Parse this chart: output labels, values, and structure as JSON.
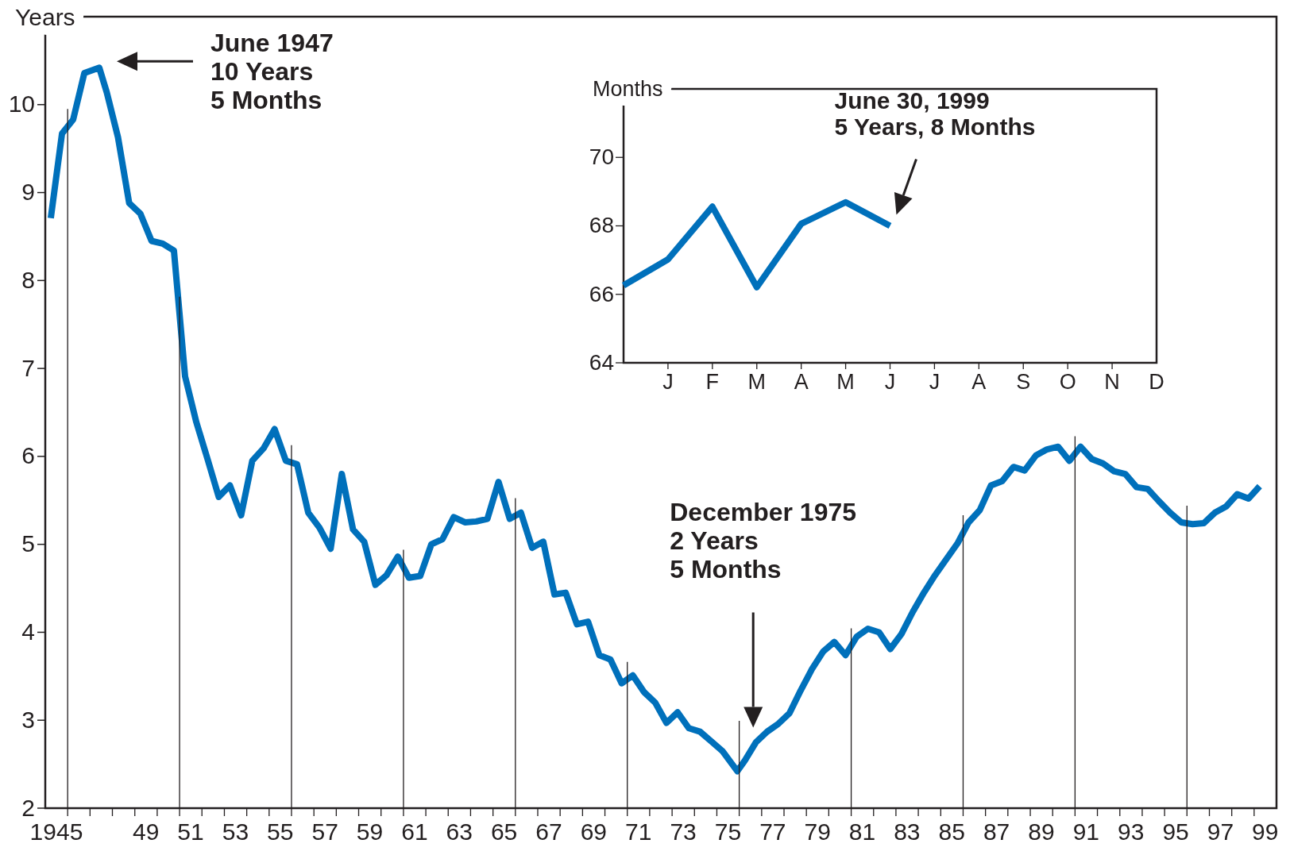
{
  "chart_data": [
    {
      "type": "line",
      "ylabel": "Years",
      "x": [
        "1945-04",
        "1945-10",
        "1946-04",
        "1946-10",
        "1947-06",
        "1947-10",
        "1948-04",
        "1948-10",
        "1949-04",
        "1949-10",
        "1950-04",
        "1950-10",
        "1951-04",
        "1951-10",
        "1952-04",
        "1952-10",
        "1953-04",
        "1953-10",
        "1954-04",
        "1954-10",
        "1955-04",
        "1955-10",
        "1956-04",
        "1956-10",
        "1957-04",
        "1957-10",
        "1958-04",
        "1958-10",
        "1959-04",
        "1959-10",
        "1960-04",
        "1960-10",
        "1961-04",
        "1961-10",
        "1962-04",
        "1962-10",
        "1963-04",
        "1963-10",
        "1964-04",
        "1964-10",
        "1965-04",
        "1965-10",
        "1966-04",
        "1966-10",
        "1967-04",
        "1967-10",
        "1968-04",
        "1968-10",
        "1969-04",
        "1969-10",
        "1970-04",
        "1970-10",
        "1971-04",
        "1971-10",
        "1972-04",
        "1972-10",
        "1973-04",
        "1973-10",
        "1974-04",
        "1974-10",
        "1975-04",
        "1975-12",
        "1976-04",
        "1976-10",
        "1977-04",
        "1977-10",
        "1978-04",
        "1978-10",
        "1979-04",
        "1979-10",
        "1980-04",
        "1980-10",
        "1981-04",
        "1981-10",
        "1982-04",
        "1982-10",
        "1983-04",
        "1983-10",
        "1984-04",
        "1984-10",
        "1985-04",
        "1985-10",
        "1986-04",
        "1986-10",
        "1987-04",
        "1987-10",
        "1988-04",
        "1988-10",
        "1989-04",
        "1989-10",
        "1990-04",
        "1990-10",
        "1991-04",
        "1991-10",
        "1992-04",
        "1992-10",
        "1993-04",
        "1993-10",
        "1994-04",
        "1994-10",
        "1995-04",
        "1995-10",
        "1996-04",
        "1996-10",
        "1997-04",
        "1997-10",
        "1998-04",
        "1998-10",
        "1999-04"
      ],
      "series": [
        {
          "color": "#0070bb",
          "values": [
            8.71,
            9.67,
            9.83,
            10.36,
            10.42,
            10.14,
            9.63,
            8.88,
            8.76,
            8.45,
            8.42,
            8.34,
            6.91,
            6.39,
            5.97,
            5.54,
            5.67,
            5.33,
            5.95,
            6.09,
            6.31,
            5.95,
            5.91,
            5.36,
            5.19,
            4.95,
            5.8,
            5.17,
            5.03,
            4.54,
            4.65,
            4.86,
            4.62,
            4.64,
            5.0,
            5.06,
            5.31,
            5.25,
            5.26,
            5.29,
            5.71,
            5.29,
            5.36,
            4.96,
            5.03,
            4.43,
            4.45,
            4.09,
            4.12,
            3.74,
            3.69,
            3.42,
            3.51,
            3.32,
            3.2,
            2.97,
            3.09,
            2.91,
            2.87,
            2.76,
            2.65,
            2.42,
            2.54,
            2.75,
            2.87,
            2.96,
            3.08,
            3.34,
            3.58,
            3.78,
            3.89,
            3.74,
            3.95,
            4.04,
            4.0,
            3.81,
            3.98,
            4.23,
            4.45,
            4.65,
            4.83,
            5.01,
            5.25,
            5.39,
            5.67,
            5.72,
            5.88,
            5.84,
            6.01,
            6.08,
            6.11,
            5.95,
            6.11,
            5.97,
            5.92,
            5.83,
            5.8,
            5.65,
            5.63,
            5.49,
            5.36,
            5.25,
            5.23,
            5.24,
            5.36,
            5.43,
            5.57,
            5.52,
            5.66
          ]
        }
      ],
      "xlim": [
        "1945",
        "2000"
      ],
      "ylim": [
        2,
        11
      ],
      "xticks": [
        {
          "value": "1945-07",
          "label": "1945"
        },
        {
          "value": "1949-07",
          "label": "49"
        },
        {
          "value": "1951-07",
          "label": "51"
        },
        {
          "value": "1953-07",
          "label": "53"
        },
        {
          "value": "1955-07",
          "label": "55"
        },
        {
          "value": "1957-07",
          "label": "57"
        },
        {
          "value": "1959-07",
          "label": "59"
        },
        {
          "value": "1961-07",
          "label": "61"
        },
        {
          "value": "1963-07",
          "label": "63"
        },
        {
          "value": "1965-07",
          "label": "65"
        },
        {
          "value": "1967-07",
          "label": "67"
        },
        {
          "value": "1969-07",
          "label": "69"
        },
        {
          "value": "1971-07",
          "label": "71"
        },
        {
          "value": "1973-07",
          "label": "73"
        },
        {
          "value": "1975-07",
          "label": "75"
        },
        {
          "value": "1977-07",
          "label": "77"
        },
        {
          "value": "1979-07",
          "label": "79"
        },
        {
          "value": "1981-07",
          "label": "81"
        },
        {
          "value": "1983-07",
          "label": "83"
        },
        {
          "value": "1985-07",
          "label": "85"
        },
        {
          "value": "1987-07",
          "label": "87"
        },
        {
          "value": "1989-07",
          "label": "89"
        },
        {
          "value": "1991-07",
          "label": "91"
        },
        {
          "value": "1993-07",
          "label": "93"
        },
        {
          "value": "1995-07",
          "label": "95"
        },
        {
          "value": "1997-07",
          "label": "97"
        },
        {
          "value": "1999-07",
          "label": "99"
        },
        {
          "value": "1946",
          "label": null
        },
        {
          "value": "1947",
          "label": null
        },
        {
          "value": "1948",
          "label": null
        },
        {
          "value": "1949",
          "label": null
        },
        {
          "value": "1950",
          "label": null
        },
        {
          "value": "1951",
          "label": null
        },
        {
          "value": "1952",
          "label": null
        },
        {
          "value": "1953",
          "label": null
        },
        {
          "value": "1954",
          "label": null
        },
        {
          "value": "1955",
          "label": null
        },
        {
          "value": "1956",
          "label": null
        },
        {
          "value": "1957",
          "label": null
        },
        {
          "value": "1958",
          "label": null
        },
        {
          "value": "1959",
          "label": null
        },
        {
          "value": "1960",
          "label": null
        },
        {
          "value": "1961",
          "label": null
        },
        {
          "value": "1962",
          "label": null
        },
        {
          "value": "1963",
          "label": null
        },
        {
          "value": "1964",
          "label": null
        },
        {
          "value": "1965",
          "label": null
        },
        {
          "value": "1966",
          "label": null
        },
        {
          "value": "1967",
          "label": null
        },
        {
          "value": "1968",
          "label": null
        },
        {
          "value": "1969",
          "label": null
        },
        {
          "value": "1970",
          "label": null
        },
        {
          "value": "1971",
          "label": null
        },
        {
          "value": "1972",
          "label": null
        },
        {
          "value": "1973",
          "label": null
        },
        {
          "value": "1974",
          "label": null
        },
        {
          "value": "1975",
          "label": null
        },
        {
          "value": "1976",
          "label": null
        },
        {
          "value": "1977",
          "label": null
        },
        {
          "value": "1978",
          "label": null
        },
        {
          "value": "1979",
          "label": null
        },
        {
          "value": "1980",
          "label": null
        },
        {
          "value": "1981",
          "label": null
        },
        {
          "value": "1982",
          "label": null
        },
        {
          "value": "1983",
          "label": null
        },
        {
          "value": "1984",
          "label": null
        },
        {
          "value": "1985",
          "label": null
        },
        {
          "value": "1986",
          "label": null
        },
        {
          "value": "1987",
          "label": null
        },
        {
          "value": "1988",
          "label": null
        },
        {
          "value": "1989",
          "label": null
        },
        {
          "value": "1990",
          "label": null
        },
        {
          "value": "1991",
          "label": null
        },
        {
          "value": "1992",
          "label": null
        },
        {
          "value": "1993",
          "label": null
        },
        {
          "value": "1994",
          "label": null
        },
        {
          "value": "1995",
          "label": null
        },
        {
          "value": "1996",
          "label": null
        },
        {
          "value": "1997",
          "label": null
        },
        {
          "value": "1998",
          "label": null
        },
        {
          "value": "1999",
          "label": null
        }
      ],
      "yticks": [
        2,
        3,
        4,
        5,
        6,
        7,
        8,
        9,
        10
      ],
      "ref_lines": [
        {
          "axis": "x",
          "value": "1946"
        },
        {
          "axis": "x",
          "value": "1951"
        },
        {
          "axis": "x",
          "value": "1956"
        },
        {
          "axis": "x",
          "value": "1961"
        },
        {
          "axis": "x",
          "value": "1966"
        },
        {
          "axis": "x",
          "value": "1971"
        },
        {
          "axis": "x",
          "value": "1976"
        },
        {
          "axis": "x",
          "value": "1981"
        },
        {
          "axis": "x",
          "value": "1986"
        },
        {
          "axis": "x",
          "value": "1991"
        },
        {
          "axis": "x",
          "value": "1996"
        }
      ],
      "annotations": [
        "June 1947\n10 Years\n5 Months",
        "December 1975\n2 Years\n5 Months"
      ]
    },
    {
      "type": "line",
      "ylabel": "Months",
      "categories": [
        null,
        "J",
        "F",
        "M",
        "A",
        "M",
        "J",
        "J",
        "A",
        "S",
        "O",
        "N",
        "D"
      ],
      "series": [
        {
          "color": "#0070bb",
          "values": [
            66.26,
            67.02,
            68.56,
            66.21,
            68.06,
            68.69,
            68,
            null,
            null,
            null,
            null,
            null,
            null
          ]
        }
      ],
      "ylim": [
        64,
        72
      ],
      "yticks": [
        64,
        66,
        68,
        70
      ],
      "annotations": [
        "June 30, 1999\n5 Years, 8 Months"
      ]
    }
  ]
}
